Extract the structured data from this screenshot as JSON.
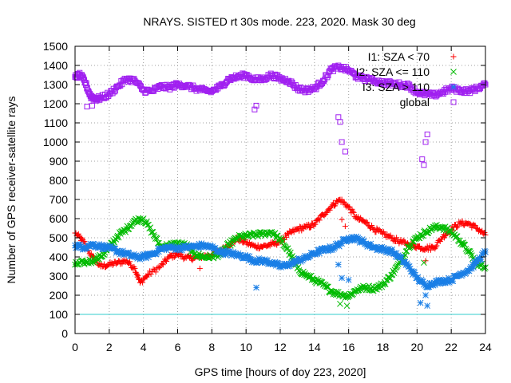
{
  "chart_data": {
    "type": "scatter",
    "title": "NRAYS. SISTED rt 30s mode. 223, 2020. Mask 30 deg",
    "xlabel": "GPS time [hours of doy 223, 2020]",
    "ylabel": "Number of GPS receiver-satellite rays",
    "xlim": [
      0,
      24
    ],
    "ylim": [
      0,
      1500
    ],
    "xticks": [
      0,
      2,
      4,
      6,
      8,
      10,
      12,
      14,
      16,
      18,
      20,
      22,
      24
    ],
    "yticks": [
      0,
      100,
      200,
      300,
      400,
      500,
      600,
      700,
      800,
      900,
      1000,
      1100,
      1200,
      1300,
      1400,
      1500
    ],
    "grid": true,
    "legend_position": "top-right",
    "threshold_line": {
      "y": 100,
      "color": "#33cccc"
    },
    "series": [
      {
        "name": "I1: SZA < 70",
        "marker": "+",
        "color": "#ff0000",
        "x": [
          0,
          0.5,
          1,
          1.5,
          2,
          2.5,
          3,
          3.5,
          3.8,
          4.3,
          5,
          5.5,
          6,
          6.5,
          7,
          7.5,
          8,
          8.5,
          9,
          9.5,
          10,
          10.5,
          11,
          11.5,
          12,
          12.5,
          13,
          13.5,
          14,
          14.5,
          15,
          15.5,
          16,
          16.5,
          17,
          17.5,
          18,
          18.5,
          19,
          19.5,
          20,
          20.5,
          21,
          21.5,
          22,
          22.5,
          23,
          23.5,
          24
        ],
        "y": [
          525,
          480,
          400,
          350,
          360,
          370,
          380,
          340,
          265,
          310,
          350,
          400,
          415,
          395,
          395,
          405,
          410,
          430,
          465,
          495,
          475,
          455,
          455,
          465,
          480,
          520,
          545,
          555,
          570,
          620,
          665,
          700,
          660,
          600,
          580,
          545,
          520,
          500,
          480,
          465,
          455,
          445,
          450,
          505,
          545,
          575,
          575,
          550,
          515
        ]
      },
      {
        "name": "I2: SZA <= 110",
        "marker": "x",
        "color": "#00bb00",
        "x": [
          0,
          0.5,
          1,
          1.5,
          2,
          2.5,
          3,
          3.5,
          4,
          4.5,
          5,
          5.5,
          6,
          6.5,
          7,
          7.5,
          8,
          8.5,
          9,
          9.5,
          10,
          10.5,
          11,
          11.5,
          12,
          12.5,
          13,
          13.5,
          14,
          14.5,
          15,
          15.5,
          16,
          16.5,
          17,
          17.5,
          18,
          18.5,
          19,
          19.5,
          20,
          20.5,
          21,
          21.5,
          22,
          22.5,
          23,
          23.5,
          24
        ],
        "y": [
          360,
          370,
          380,
          400,
          450,
          510,
          545,
          590,
          600,
          530,
          455,
          460,
          470,
          460,
          415,
          400,
          400,
          415,
          465,
          500,
          510,
          515,
          520,
          530,
          490,
          430,
          340,
          305,
          280,
          255,
          220,
          205,
          195,
          230,
          240,
          235,
          255,
          305,
          370,
          455,
          500,
          530,
          555,
          555,
          530,
          485,
          430,
          365,
          345
        ]
      },
      {
        "name": "I3: SZA > 110",
        "marker": "*",
        "color": "#1a7fe6",
        "x": [
          0,
          0.5,
          1,
          1.5,
          2,
          2.5,
          3,
          3.5,
          4,
          4.5,
          5,
          5.5,
          6,
          6.5,
          7,
          7.5,
          8,
          8.5,
          9,
          9.5,
          10,
          10.5,
          11,
          11.5,
          12,
          12.5,
          13,
          13.5,
          14,
          14.5,
          15,
          15.5,
          16,
          16.5,
          17,
          17.5,
          18,
          18.5,
          19,
          19.5,
          20,
          20.5,
          21,
          21.5,
          22,
          22.5,
          23,
          23.5,
          24
        ],
        "y": [
          460,
          450,
          465,
          455,
          445,
          430,
          415,
          400,
          400,
          415,
          440,
          450,
          445,
          450,
          455,
          460,
          450,
          425,
          420,
          410,
          400,
          380,
          380,
          370,
          350,
          360,
          380,
          395,
          420,
          435,
          445,
          470,
          500,
          495,
          470,
          450,
          440,
          430,
          395,
          350,
          290,
          250,
          265,
          275,
          280,
          310,
          330,
          375,
          425
        ]
      },
      {
        "name": "global",
        "marker": "square",
        "color": "#a020f0",
        "x": [
          0,
          0.3,
          0.6,
          0.9,
          1.2,
          1.5,
          2,
          2.5,
          3,
          3.5,
          4,
          4.5,
          5,
          5.5,
          6,
          6.5,
          7,
          7.5,
          8,
          8.5,
          9,
          9.5,
          10,
          10.5,
          11,
          11.5,
          12,
          12.5,
          13,
          13.5,
          14,
          14.5,
          15,
          15.5,
          16,
          16.5,
          17,
          17.5,
          18,
          18.5,
          19,
          19.5,
          20,
          20.5,
          21,
          21.5,
          22,
          22.5,
          23,
          23.5,
          24
        ],
        "y": [
          1340,
          1350,
          1310,
          1240,
          1225,
          1230,
          1250,
          1290,
          1330,
          1320,
          1270,
          1265,
          1290,
          1285,
          1300,
          1295,
          1280,
          1270,
          1265,
          1290,
          1330,
          1340,
          1350,
          1325,
          1330,
          1350,
          1330,
          1320,
          1280,
          1270,
          1280,
          1320,
          1380,
          1390,
          1375,
          1340,
          1330,
          1320,
          1310,
          1305,
          1300,
          1295,
          1260,
          1250,
          1245,
          1260,
          1280,
          1270,
          1265,
          1280,
          1300
        ]
      }
    ],
    "outliers": {
      "global": [
        [
          0.7,
          1185
        ],
        [
          1.0,
          1190
        ],
        [
          10.5,
          1170
        ],
        [
          10.6,
          1190
        ],
        [
          15.4,
          1130
        ],
        [
          15.5,
          1105
        ],
        [
          15.6,
          1000
        ],
        [
          15.8,
          950
        ],
        [
          20.3,
          910
        ],
        [
          20.4,
          880
        ],
        [
          20.5,
          1000
        ],
        [
          20.6,
          1040
        ]
      ],
      "I3: SZA > 110": [
        [
          10.6,
          240
        ],
        [
          15.4,
          360
        ],
        [
          15.6,
          290
        ],
        [
          16.0,
          280
        ],
        [
          20.2,
          160
        ],
        [
          20.5,
          200
        ],
        [
          20.6,
          145
        ]
      ],
      "I1: SZA < 70": [
        [
          7.3,
          340
        ],
        [
          15.6,
          595
        ],
        [
          15.8,
          560
        ],
        [
          20.5,
          380
        ]
      ],
      "I2: SZA <= 110": [
        [
          15.5,
          155
        ],
        [
          15.9,
          145
        ],
        [
          20.4,
          370
        ]
      ]
    }
  }
}
